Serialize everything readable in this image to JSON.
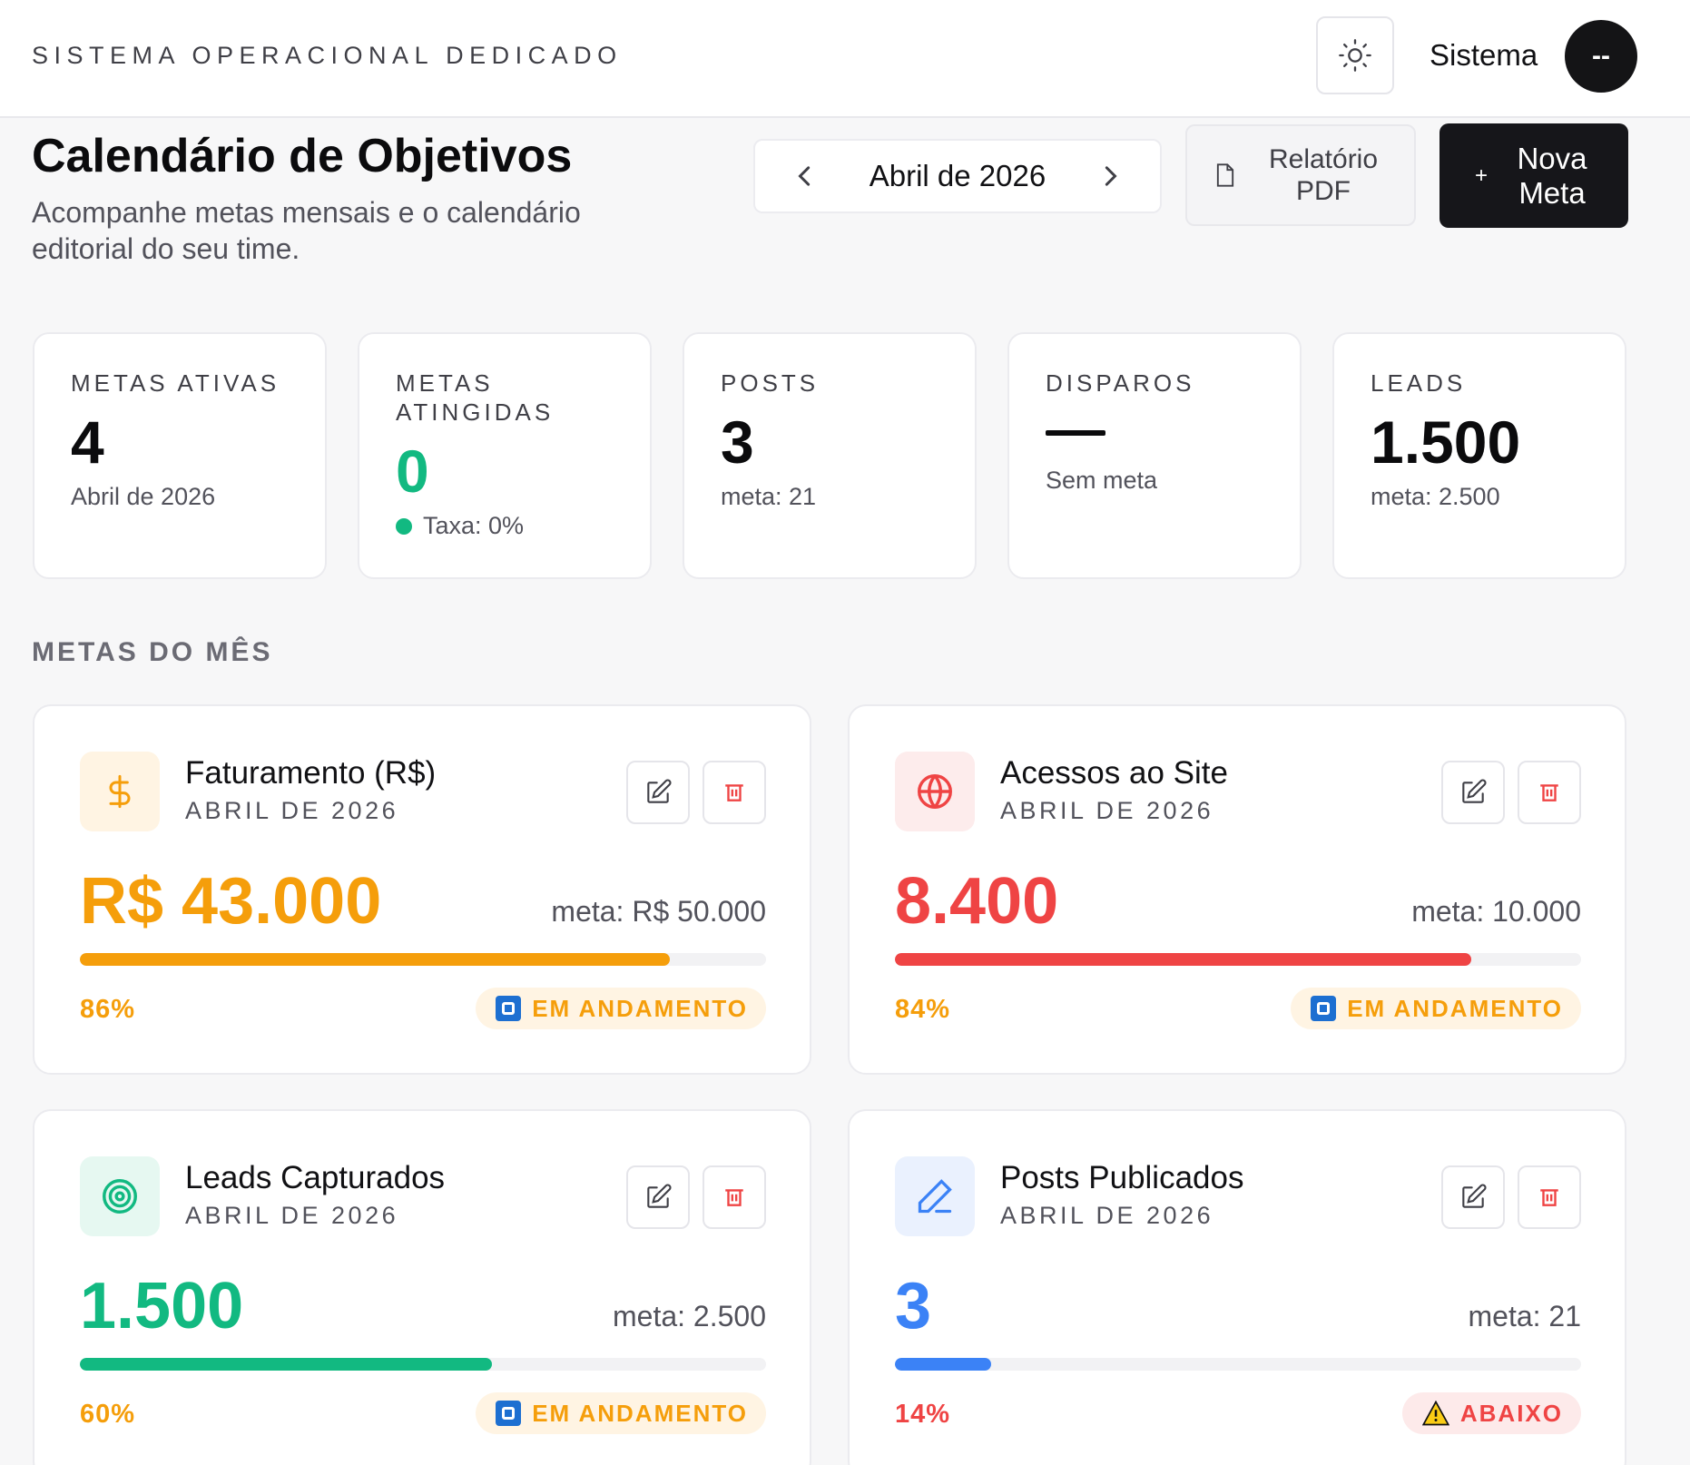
{
  "header": {
    "brand": "SISTEMA OPERACIONAL DEDICADO",
    "user_name": "Sistema",
    "avatar_initials": "--"
  },
  "page": {
    "title": "Calendário de Objetivos",
    "subtitle": "Acompanhe metas mensais e o calendário editorial do seu time.",
    "month": "Abril de 2026",
    "pdf_label": "Relatório PDF",
    "new_label": "Nova Meta"
  },
  "stats": [
    {
      "label": "METAS ATIVAS",
      "value": "4",
      "foot": "Abril de 2026"
    },
    {
      "label": "METAS ATINGIDAS",
      "value": "0",
      "foot": "Taxa: 0%"
    },
    {
      "label": "POSTS",
      "value": "3",
      "foot": "meta: 21"
    },
    {
      "label": "DISPAROS",
      "value": "—",
      "foot": "Sem meta"
    },
    {
      "label": "LEADS",
      "value": "1.500",
      "foot": "meta: 2.500"
    }
  ],
  "section_title": "METAS DO MÊS",
  "goals": [
    {
      "title": "Faturamento (R$)",
      "period": "ABRIL DE 2026",
      "value": "R$ 43.000",
      "target": "meta: R$ 50.000",
      "progress": 86,
      "pct": "86%",
      "status": "EM ANDAMENTO",
      "color": "#f59e0b",
      "icon": "dollar-icon"
    },
    {
      "title": "Acessos ao Site",
      "period": "ABRIL DE 2026",
      "value": "8.400",
      "target": "meta: 10.000",
      "progress": 84,
      "pct": "84%",
      "status": "EM ANDAMENTO",
      "color": "#ef4444",
      "icon": "globe-icon"
    },
    {
      "title": "Leads Capturados",
      "period": "ABRIL DE 2026",
      "value": "1.500",
      "target": "meta: 2.500",
      "progress": 60,
      "pct": "60%",
      "status": "EM ANDAMENTO",
      "color": "#12b981",
      "icon": "target-icon"
    },
    {
      "title": "Posts Publicados",
      "period": "ABRIL DE 2026",
      "value": "3",
      "target": "meta: 21",
      "progress": 14,
      "pct": "14%",
      "status": "ABAIXO",
      "color": "#3b82f6",
      "icon": "pen-icon"
    }
  ],
  "colors": {
    "progress_badge_text": "#f59e0b",
    "below_badge_text": "#ef4444",
    "achieved_green": "#12b981"
  }
}
